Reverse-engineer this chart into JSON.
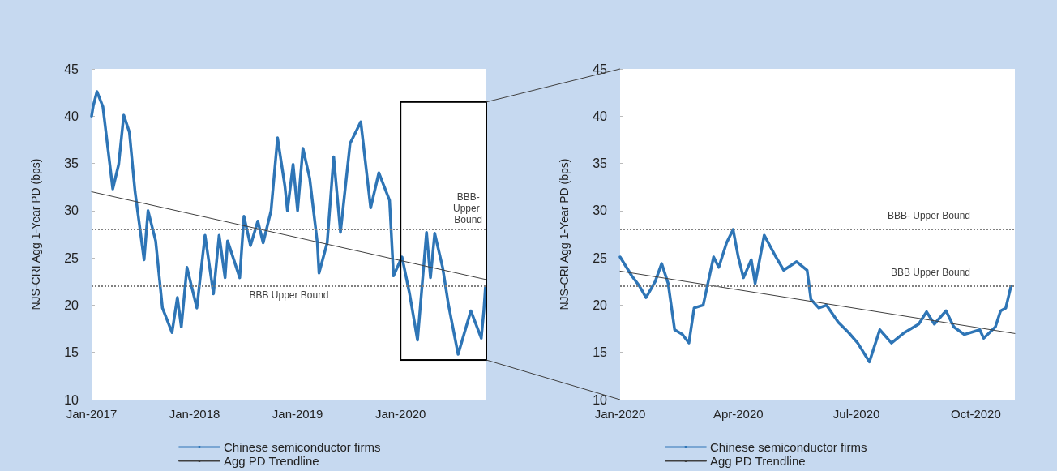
{
  "chart_data": [
    {
      "type": "line",
      "ylabel": "NJS-CRI Agg 1-Year PD (bps)",
      "xlim": [
        "2017-01-01",
        "2020-10-31"
      ],
      "xticks": [
        {
          "value": "2017-01-01",
          "label": "Jan-2017"
        },
        {
          "value": "2018-01-01",
          "label": "Jan-2018"
        },
        {
          "value": "2019-01-01",
          "label": "Jan-2019"
        },
        {
          "value": "2020-01-01",
          "label": "Jan-2020"
        }
      ],
      "ylim": [
        10,
        45
      ],
      "yticks": [
        10,
        15,
        20,
        25,
        30,
        35,
        40,
        45
      ],
      "grid": false,
      "legend": "bottom",
      "marker": "none",
      "line_style": "solid",
      "series": [
        {
          "name": "Chinese semiconductor firms",
          "color": "#2e75b6",
          "x": [
            "2017-01-01",
            "2017-01-07",
            "2017-01-20",
            "2017-02-10",
            "2017-03-17",
            "2017-04-07",
            "2017-04-25",
            "2017-05-15",
            "2017-06-04",
            "2017-07-06",
            "2017-07-20",
            "2017-08-16",
            "2017-09-09",
            "2017-10-13",
            "2017-11-01",
            "2017-11-15",
            "2017-12-05",
            "2018-01-09",
            "2018-02-07",
            "2018-03-09",
            "2018-03-29",
            "2018-04-19",
            "2018-04-28",
            "2018-06-10",
            "2018-06-25",
            "2018-07-18",
            "2018-08-13",
            "2018-09-01",
            "2018-09-29",
            "2018-10-22",
            "2018-11-17",
            "2018-11-26",
            "2018-12-16",
            "2019-01-01",
            "2019-01-20",
            "2019-02-13",
            "2019-03-12",
            "2019-03-18",
            "2019-04-16",
            "2019-05-09",
            "2019-06-02",
            "2019-07-06",
            "2019-08-13",
            "2019-09-17",
            "2019-10-16",
            "2019-11-23",
            "2019-12-07",
            "2020-01-06",
            "2020-02-02",
            "2020-03-01",
            "2020-04-02",
            "2020-04-16",
            "2020-05-01",
            "2020-05-29",
            "2020-06-19",
            "2020-07-23",
            "2020-09-06",
            "2020-10-13",
            "2020-10-22",
            "2020-10-28"
          ],
          "values": [
            40,
            41.1,
            42.6,
            41,
            32.3,
            34.9,
            40.1,
            38.3,
            32,
            24.8,
            30,
            26.8,
            19.7,
            17.1,
            20.8,
            17.7,
            24,
            19.7,
            27.4,
            21.2,
            27.4,
            22.9,
            26.8,
            22.9,
            29.4,
            26.3,
            28.9,
            26.6,
            30,
            37.7,
            32.6,
            30,
            34.9,
            30,
            36.6,
            33.4,
            26.6,
            23.4,
            26.6,
            35.7,
            27.7,
            37.1,
            39.4,
            30.3,
            34,
            31.1,
            23.1,
            25.1,
            21.2,
            16.3,
            27.7,
            22.9,
            27.6,
            24,
            20,
            14.8,
            19.4,
            16.5,
            19.4,
            22
          ]
        },
        {
          "name": "Agg PD Trendline",
          "color": "#404040",
          "x": [
            "2017-01-01",
            "2020-10-31"
          ],
          "values": [
            32,
            22.7
          ]
        }
      ],
      "ref_lines": [
        {
          "axis": "y",
          "value": 28,
          "label": "BBB- Upper Bound",
          "color": "#808080",
          "line_style": "dotted"
        },
        {
          "axis": "y",
          "value": 22,
          "label": "BBB Upper Bound",
          "color": "#808080",
          "line_style": "dotted"
        }
      ]
    },
    {
      "type": "line",
      "ylabel": "NJS-CRI Agg 1-Year PD (bps)",
      "xlim": [
        "2020-01-01",
        "2020-10-31"
      ],
      "xticks": [
        {
          "value": "2020-01-01",
          "label": "Jan-2020"
        },
        {
          "value": "2020-04-01",
          "label": "Apr-2020"
        },
        {
          "value": "2020-07-01",
          "label": "Jul-2020"
        },
        {
          "value": "2020-10-01",
          "label": "Oct-2020"
        }
      ],
      "ylim": [
        10,
        45
      ],
      "yticks": [
        10,
        15,
        20,
        25,
        30,
        35,
        40,
        45
      ],
      "grid": false,
      "legend": "bottom",
      "marker": "none",
      "line_style": "solid",
      "series": [
        {
          "name": "Chinese semiconductor firms",
          "color": "#2e75b6",
          "x": [
            "2020-01-01",
            "2020-01-10",
            "2020-01-16",
            "2020-01-21",
            "2020-01-28",
            "2020-02-02",
            "2020-02-07",
            "2020-02-12",
            "2020-02-18",
            "2020-02-23",
            "2020-02-27",
            "2020-03-05",
            "2020-03-13",
            "2020-03-17",
            "2020-03-23",
            "2020-03-28",
            "2020-04-01",
            "2020-04-05",
            "2020-04-11",
            "2020-04-14",
            "2020-04-21",
            "2020-04-30",
            "2020-05-06",
            "2020-05-16",
            "2020-05-24",
            "2020-05-27",
            "2020-06-02",
            "2020-06-08",
            "2020-06-17",
            "2020-06-25",
            "2020-07-02",
            "2020-07-11",
            "2020-07-19",
            "2020-07-28",
            "2020-08-07",
            "2020-08-18",
            "2020-08-24",
            "2020-08-30",
            "2020-09-08",
            "2020-09-14",
            "2020-09-22",
            "2020-10-04",
            "2020-10-07",
            "2020-10-16",
            "2020-10-20",
            "2020-10-24",
            "2020-10-28"
          ],
          "values": [
            25.1,
            23.1,
            22,
            20.8,
            22.5,
            24.4,
            22.3,
            17.4,
            16.9,
            16,
            19.7,
            20,
            25.1,
            24,
            26.6,
            28,
            25.1,
            22.9,
            24.8,
            22.3,
            27.4,
            25.1,
            23.7,
            24.6,
            23.7,
            20.6,
            19.7,
            20,
            18.2,
            17.1,
            16,
            14,
            17.4,
            16,
            17.1,
            18,
            19.3,
            18,
            19.4,
            17.7,
            16.9,
            17.4,
            16.5,
            17.7,
            19.4,
            19.7,
            22
          ]
        },
        {
          "name": "Agg PD Trendline",
          "color": "#404040",
          "x": [
            "2020-01-01",
            "2020-10-31"
          ],
          "values": [
            23.6,
            17
          ]
        }
      ],
      "ref_lines": [
        {
          "axis": "y",
          "value": 28,
          "label": "BBB- Upper Bound",
          "color": "#808080",
          "line_style": "dotted"
        },
        {
          "axis": "y",
          "value": 22,
          "label": "BBB Upper Bound",
          "color": "#808080",
          "line_style": "dotted"
        }
      ]
    }
  ]
}
